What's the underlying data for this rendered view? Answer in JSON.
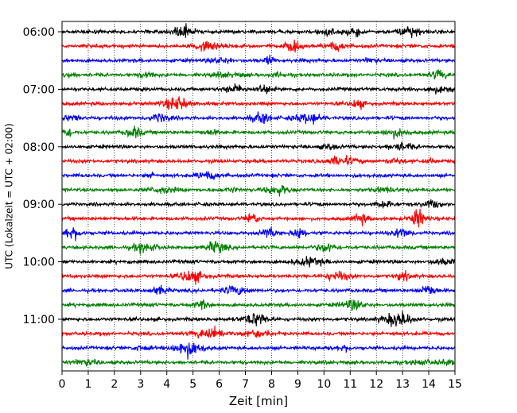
{
  "chart_data": {
    "type": "line",
    "title": "",
    "xlabel": "Zeit  [min]",
    "ylabel": "UTC (Lokalzeit = UTC + 02:00)",
    "xlim": [
      0,
      15
    ],
    "x_ticks": [
      0,
      1,
      2,
      3,
      4,
      5,
      6,
      7,
      8,
      9,
      10,
      11,
      12,
      13,
      14,
      15
    ],
    "y_ticks": [
      {
        "offset_min": 0,
        "label": "06:00"
      },
      {
        "offset_min": 60,
        "label": "07:00"
      },
      {
        "offset_min": 120,
        "label": "08:00"
      },
      {
        "offset_min": 180,
        "label": "09:00"
      },
      {
        "offset_min": 240,
        "label": "10:00"
      },
      {
        "offset_min": 300,
        "label": "11:00"
      }
    ],
    "grid": {
      "vertical_dotted": true
    },
    "color_cycle": [
      "#000000",
      "#ff0000",
      "#0000ff",
      "#008000"
    ],
    "traces": [
      {
        "start": "06:00",
        "color": "#000000"
      },
      {
        "start": "06:15",
        "color": "#ff0000"
      },
      {
        "start": "06:30",
        "color": "#0000ff"
      },
      {
        "start": "06:45",
        "color": "#008000"
      },
      {
        "start": "07:00",
        "color": "#000000"
      },
      {
        "start": "07:15",
        "color": "#ff0000"
      },
      {
        "start": "07:30",
        "color": "#0000ff"
      },
      {
        "start": "07:45",
        "color": "#008000"
      },
      {
        "start": "08:00",
        "color": "#000000"
      },
      {
        "start": "08:15",
        "color": "#ff0000"
      },
      {
        "start": "08:30",
        "color": "#0000ff"
      },
      {
        "start": "08:45",
        "color": "#008000"
      },
      {
        "start": "09:00",
        "color": "#000000"
      },
      {
        "start": "09:15",
        "color": "#ff0000"
      },
      {
        "start": "09:30",
        "color": "#0000ff"
      },
      {
        "start": "09:45",
        "color": "#008000"
      },
      {
        "start": "10:00",
        "color": "#000000"
      },
      {
        "start": "10:15",
        "color": "#ff0000"
      },
      {
        "start": "10:30",
        "color": "#0000ff"
      },
      {
        "start": "10:45",
        "color": "#008000"
      },
      {
        "start": "11:00",
        "color": "#000000"
      },
      {
        "start": "11:15",
        "color": "#ff0000"
      },
      {
        "start": "11:30",
        "color": "#0000ff"
      },
      {
        "start": "11:45",
        "color": "#008000"
      }
    ]
  }
}
